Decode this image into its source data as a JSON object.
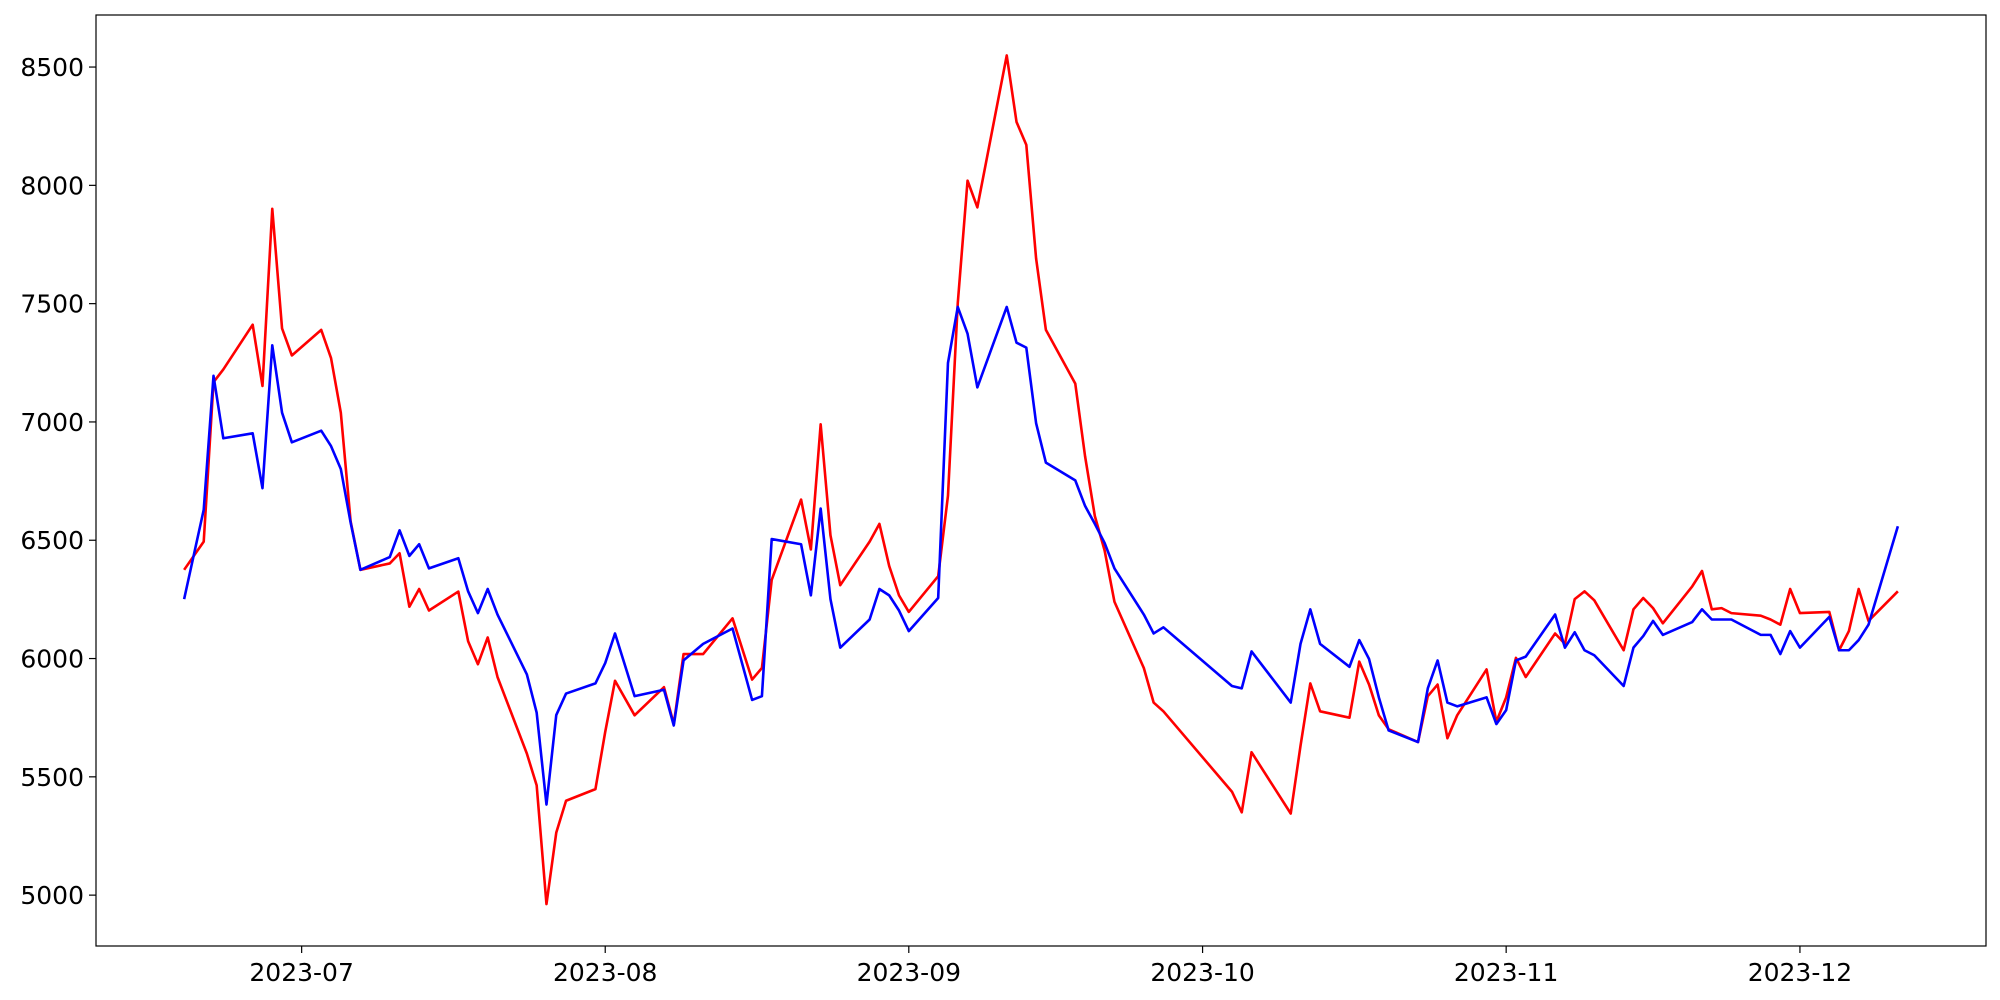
{
  "chart_data": {
    "type": "line",
    "x": [
      "2023-06-19",
      "2023-06-21",
      "2023-06-22",
      "2023-06-23",
      "2023-06-26",
      "2023-06-27",
      "2023-06-28",
      "2023-06-29",
      "2023-06-30",
      "2023-07-03",
      "2023-07-04",
      "2023-07-05",
      "2023-07-06",
      "2023-07-07",
      "2023-07-10",
      "2023-07-11",
      "2023-07-12",
      "2023-07-13",
      "2023-07-14",
      "2023-07-17",
      "2023-07-18",
      "2023-07-19",
      "2023-07-20",
      "2023-07-21",
      "2023-07-24",
      "2023-07-25",
      "2023-07-26",
      "2023-07-27",
      "2023-07-28",
      "2023-07-31",
      "2023-08-01",
      "2023-08-02",
      "2023-08-04",
      "2023-08-07",
      "2023-08-08",
      "2023-08-09",
      "2023-08-11",
      "2023-08-14",
      "2023-08-16",
      "2023-08-17",
      "2023-08-18",
      "2023-08-21",
      "2023-08-22",
      "2023-08-23",
      "2023-08-24",
      "2023-08-25",
      "2023-08-28",
      "2023-08-29",
      "2023-08-30",
      "2023-08-31",
      "2023-09-01",
      "2023-09-04",
      "2023-09-05",
      "2023-09-06",
      "2023-09-07",
      "2023-09-08",
      "2023-09-11",
      "2023-09-12",
      "2023-09-13",
      "2023-09-14",
      "2023-09-15",
      "2023-09-18",
      "2023-09-19",
      "2023-09-20",
      "2023-09-21",
      "2023-09-22",
      "2023-09-25",
      "2023-09-26",
      "2023-09-27",
      "2023-10-04",
      "2023-10-05",
      "2023-10-06",
      "2023-10-10",
      "2023-10-11",
      "2023-10-12",
      "2023-10-13",
      "2023-10-16",
      "2023-10-17",
      "2023-10-18",
      "2023-10-19",
      "2023-10-20",
      "2023-10-23",
      "2023-10-24",
      "2023-10-25",
      "2023-10-26",
      "2023-10-27",
      "2023-10-30",
      "2023-10-31",
      "2023-11-01",
      "2023-11-02",
      "2023-11-03",
      "2023-11-06",
      "2023-11-07",
      "2023-11-08",
      "2023-11-09",
      "2023-11-10",
      "2023-11-13",
      "2023-11-14",
      "2023-11-15",
      "2023-11-16",
      "2023-11-17",
      "2023-11-20",
      "2023-11-21",
      "2023-11-22",
      "2023-11-23",
      "2023-11-24",
      "2023-11-27",
      "2023-11-28",
      "2023-11-29",
      "2023-11-30",
      "2023-12-01",
      "2023-12-04",
      "2023-12-05",
      "2023-12-06",
      "2023-12-07",
      "2023-12-08",
      "2023-12-11"
    ],
    "series": [
      {
        "color": "#ff0000",
        "values": [
          6375,
          6494,
          7168,
          7222,
          7411,
          7152,
          7901,
          7395,
          7281,
          7389,
          7270,
          7039,
          6580,
          6375,
          6402,
          6445,
          6219,
          6294,
          6203,
          6283,
          6073,
          5976,
          6089,
          5922,
          5598,
          5464,
          4962,
          5264,
          5399,
          5448,
          5690,
          5906,
          5760,
          5879,
          5723,
          6019,
          6019,
          6170,
          5911,
          5960,
          6332,
          6672,
          6461,
          6990,
          6521,
          6310,
          6494,
          6569,
          6391,
          6267,
          6197,
          6348,
          6688,
          7502,
          8020,
          7907,
          8549,
          8268,
          8171,
          7691,
          7389,
          7162,
          6855,
          6602,
          6456,
          6240,
          5960,
          5814,
          5777,
          5437,
          5350,
          5604,
          5345,
          5631,
          5895,
          5777,
          5750,
          5987,
          5890,
          5760,
          5701,
          5647,
          5841,
          5890,
          5663,
          5760,
          5954,
          5733,
          5836,
          6003,
          5922,
          6106,
          6062,
          6251,
          6284,
          6246,
          6035,
          6208,
          6256,
          6213,
          6149,
          6305,
          6370,
          6208,
          6213,
          6192,
          6181,
          6165,
          6143,
          6294,
          6192,
          6197,
          6035,
          6116,
          6294,
          6159,
          6284
        ]
      },
      {
        "color": "#0000ff",
        "values": [
          6251,
          6629,
          7195,
          6931,
          6952,
          6720,
          7324,
          7039,
          6914,
          6963,
          6898,
          6801,
          6575,
          6375,
          6429,
          6542,
          6434,
          6483,
          6381,
          6424,
          6284,
          6192,
          6294,
          6186,
          5933,
          5771,
          5383,
          5761,
          5852,
          5895,
          5981,
          6106,
          5841,
          5868,
          5717,
          5992,
          6062,
          6127,
          5825,
          5841,
          6505,
          6483,
          6267,
          6634,
          6251,
          6046,
          6165,
          6294,
          6267,
          6203,
          6116,
          6256,
          7249,
          7486,
          7373,
          7146,
          7486,
          7335,
          7314,
          6995,
          6828,
          6753,
          6645,
          6569,
          6488,
          6381,
          6186,
          6106,
          6132,
          5884,
          5874,
          6030,
          5814,
          6062,
          6208,
          6062,
          5965,
          6078,
          5998,
          5836,
          5696,
          5647,
          5874,
          5992,
          5814,
          5798,
          5836,
          5723,
          5782,
          5992,
          6008,
          6186,
          6046,
          6111,
          6035,
          6014,
          5884,
          6046,
          6095,
          6159,
          6100,
          6154,
          6208,
          6165,
          6165,
          6165,
          6100,
          6100,
          6019,
          6116,
          6046,
          6176,
          6035,
          6035,
          6078,
          6143,
          6559
        ]
      }
    ],
    "xlim": [
      "2023-06-10",
      "2023-12-20"
    ],
    "xticks": [
      {
        "value": "2023-07-01",
        "label": "2023-07"
      },
      {
        "value": "2023-08-01",
        "label": "2023-08"
      },
      {
        "value": "2023-09-01",
        "label": "2023-09"
      },
      {
        "value": "2023-10-01",
        "label": "2023-10"
      },
      {
        "value": "2023-11-01",
        "label": "2023-11"
      },
      {
        "value": "2023-12-01",
        "label": "2023-12"
      }
    ],
    "ylim": [
      4785,
      8720
    ],
    "yticks": [
      5000,
      5500,
      6000,
      6500,
      7000,
      7500,
      8000,
      8500
    ]
  }
}
